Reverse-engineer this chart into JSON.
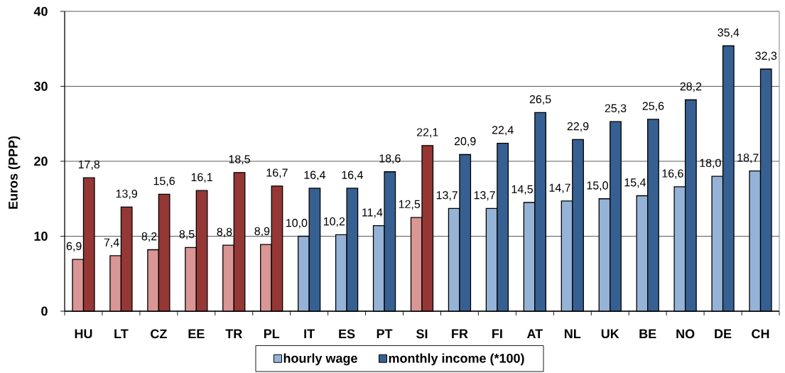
{
  "chart_data": {
    "type": "bar",
    "ylabel": "Euros (PPP)",
    "categories": [
      "HU",
      "LT",
      "CZ",
      "EE",
      "TR",
      "PL",
      "IT",
      "ES",
      "PT",
      "SI",
      "FR",
      "FI",
      "AT",
      "NL",
      "UK",
      "BE",
      "NO",
      "DE",
      "CH"
    ],
    "series": [
      {
        "name": "hourly wage",
        "color": "#95b3d7",
        "colors": [
          "#d99694",
          "#d99694",
          "#d99694",
          "#d99694",
          "#d99694",
          "#d99694",
          "#95b3d7",
          "#95b3d7",
          "#95b3d7",
          "#d99694",
          "#95b3d7",
          "#95b3d7",
          "#95b3d7",
          "#95b3d7",
          "#95b3d7",
          "#95b3d7",
          "#95b3d7",
          "#95b3d7",
          "#95b3d7"
        ],
        "values": [
          6.9,
          7.4,
          8.2,
          8.5,
          8.8,
          8.9,
          10.0,
          10.2,
          11.4,
          12.5,
          13.7,
          13.7,
          14.5,
          14.7,
          15.0,
          15.4,
          16.6,
          18.0,
          18.7
        ],
        "value_labels": [
          "6,9",
          "7,4",
          "8,2",
          "8,5",
          "8,8",
          "8,9",
          "10,0",
          "10,2",
          "11,4",
          "12,5",
          "13,7",
          "13,7",
          "14,5",
          "14,7",
          "15,0",
          "15,4",
          "16,6",
          "18,0",
          "18,7"
        ]
      },
      {
        "name": "monthly income (*100)",
        "color": "#376092",
        "colors": [
          "#953735",
          "#953735",
          "#953735",
          "#953735",
          "#953735",
          "#953735",
          "#376092",
          "#376092",
          "#376092",
          "#953735",
          "#376092",
          "#376092",
          "#376092",
          "#376092",
          "#376092",
          "#376092",
          "#376092",
          "#376092",
          "#376092"
        ],
        "values": [
          17.8,
          13.9,
          15.6,
          16.1,
          18.5,
          16.7,
          16.4,
          16.4,
          18.6,
          22.1,
          20.9,
          22.4,
          26.5,
          22.9,
          25.3,
          25.6,
          28.2,
          35.4,
          32.3
        ],
        "value_labels": [
          "17,8",
          "13,9",
          "15,6",
          "16,1",
          "18,5",
          "16,7",
          "16,4",
          "16,4",
          "18,6",
          "22,1",
          "20,9",
          "22,4",
          "26,5",
          "22,9",
          "25,3",
          "25,6",
          "28,2",
          "35,4",
          "32,3"
        ]
      }
    ],
    "ylim": [
      0,
      40
    ],
    "yticks": [
      0,
      10,
      20,
      30,
      40
    ],
    "grid": "y",
    "legend": "bottom"
  }
}
